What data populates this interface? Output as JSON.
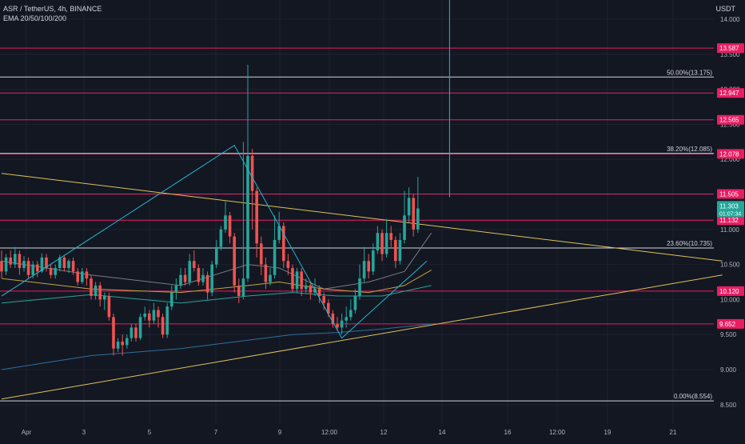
{
  "header": {
    "symbol_line": "ASR / TetherUS, 4h, BINANCE",
    "indicator_line": "EMA 20/50/100/200",
    "unit": "USDT"
  },
  "colors": {
    "background": "#131722",
    "grid": "#1e2230",
    "up": "#26a69a",
    "down": "#ef5350",
    "level_line": "#e91e63",
    "fib_line": "#d1d4dc",
    "trend_line": "#e0c25a",
    "zigzag": "#22b8cf",
    "ema20": "#787b86",
    "ema50": "#c2a441",
    "ema100": "#26a69a",
    "ema200": "#2d6f9e",
    "current_price_bg": "#26a69a",
    "level_tag_bg": "#e91e63"
  },
  "chart_data": {
    "type": "candlestick",
    "title": "ASR / TetherUS, 4h, BINANCE",
    "ylim": [
      8.4,
      14.2
    ],
    "y_scale": "linear",
    "y_ticks": [
      "14.000",
      "13.500",
      "13.000",
      "12.500",
      "12.000",
      "11.500",
      "11.000",
      "10.500",
      "10.000",
      "9.500",
      "9.000",
      "8.500"
    ],
    "x_ticks": [
      "Apr",
      "3",
      "5",
      "7",
      "9",
      "12:00",
      "12",
      "14",
      "16",
      "12:00",
      "19",
      "21"
    ],
    "grid": true,
    "horizontal_levels": [
      {
        "price": 13.587,
        "label": "13.587"
      },
      {
        "price": 12.947,
        "label": "12.947"
      },
      {
        "price": 12.565,
        "label": "12.565"
      },
      {
        "price": 12.078,
        "label": "12.078"
      },
      {
        "price": 11.505,
        "label": "11.505"
      },
      {
        "price": 11.132,
        "label": "11.132"
      },
      {
        "price": 10.12,
        "label": "10.120"
      },
      {
        "price": 9.652,
        "label": "9.652"
      }
    ],
    "fib_levels": [
      {
        "price": 13.175,
        "label": "50.00%(13.175)"
      },
      {
        "price": 12.085,
        "label": "38.20%(12.085)"
      },
      {
        "price": 10.735,
        "label": "23.60%(10.735)"
      },
      {
        "price": 8.554,
        "label": "0.00%(8.554)"
      }
    ],
    "current_price": {
      "price": 11.303,
      "label": "11.303",
      "countdown": "01:07:34"
    },
    "trend_lines": [
      {
        "name": "upper",
        "points": [
          [
            0,
            11.8
          ],
          [
            161,
            10.55
          ]
        ]
      },
      {
        "name": "lower",
        "points": [
          [
            0,
            8.58
          ],
          [
            161,
            10.35
          ]
        ]
      }
    ],
    "zigzag": [
      [
        0,
        10.05
      ],
      [
        52,
        12.2
      ],
      [
        76,
        9.45
      ],
      [
        95,
        10.55
      ]
    ],
    "vertical_spike": {
      "x": 99,
      "from": 11.46,
      "to": 14.3
    },
    "emas": [
      {
        "period": 20,
        "values": [
          [
            0,
            10.55
          ],
          [
            20,
            10.35
          ],
          [
            40,
            10.2
          ],
          [
            55,
            10.5
          ],
          [
            62,
            10.45
          ],
          [
            72,
            10.15
          ],
          [
            82,
            10.25
          ],
          [
            90,
            10.4
          ],
          [
            96,
            10.95
          ]
        ]
      },
      {
        "period": 50,
        "values": [
          [
            0,
            10.3
          ],
          [
            20,
            10.15
          ],
          [
            40,
            10.1
          ],
          [
            55,
            10.2
          ],
          [
            62,
            10.25
          ],
          [
            72,
            10.15
          ],
          [
            82,
            10.1
          ],
          [
            90,
            10.2
          ],
          [
            96,
            10.42
          ]
        ]
      },
      {
        "period": 100,
        "values": [
          [
            0,
            9.95
          ],
          [
            20,
            10.07
          ],
          [
            40,
            9.95
          ],
          [
            55,
            10.05
          ],
          [
            65,
            10.1
          ],
          [
            75,
            10.05
          ],
          [
            85,
            10.05
          ],
          [
            96,
            10.2
          ]
        ]
      },
      {
        "period": 200,
        "values": [
          [
            0,
            9.0
          ],
          [
            20,
            9.2
          ],
          [
            40,
            9.3
          ],
          [
            55,
            9.42
          ],
          [
            65,
            9.5
          ],
          [
            75,
            9.53
          ],
          [
            85,
            9.58
          ],
          [
            96,
            9.65
          ]
        ]
      }
    ],
    "candles": [
      [
        10.55,
        10.4,
        10.7,
        10.3
      ],
      [
        10.4,
        10.6,
        10.65,
        10.35
      ],
      [
        10.6,
        10.5,
        10.7,
        10.45
      ],
      [
        10.5,
        10.65,
        10.75,
        10.45
      ],
      [
        10.65,
        10.45,
        10.7,
        10.35
      ],
      [
        10.45,
        10.55,
        10.62,
        10.4
      ],
      [
        10.55,
        10.35,
        10.6,
        10.3
      ],
      [
        10.35,
        10.5,
        10.55,
        10.3
      ],
      [
        10.5,
        10.4,
        10.55,
        10.32
      ],
      [
        10.4,
        10.6,
        10.66,
        10.38
      ],
      [
        10.6,
        10.45,
        10.65,
        10.4
      ],
      [
        10.45,
        10.35,
        10.5,
        10.3
      ],
      [
        10.35,
        10.45,
        10.5,
        10.3
      ],
      [
        10.45,
        10.6,
        10.64,
        10.4
      ],
      [
        10.6,
        10.45,
        10.62,
        10.4
      ],
      [
        10.45,
        10.55,
        10.58,
        10.38
      ],
      [
        10.55,
        10.4,
        10.6,
        10.35
      ],
      [
        10.4,
        10.25,
        10.45,
        10.2
      ],
      [
        10.25,
        10.4,
        10.45,
        10.22
      ],
      [
        10.4,
        10.3,
        10.45,
        10.2
      ],
      [
        10.3,
        10.05,
        10.35,
        10.0
      ],
      [
        10.05,
        10.2,
        10.25,
        10.0
      ],
      [
        10.2,
        10.0,
        10.25,
        9.9
      ],
      [
        10.0,
        10.05,
        10.1,
        9.85
      ],
      [
        10.05,
        9.75,
        10.1,
        9.7
      ],
      [
        9.75,
        9.3,
        9.8,
        9.2
      ],
      [
        9.3,
        9.4,
        9.45,
        9.25
      ],
      [
        9.4,
        9.35,
        9.5,
        9.2
      ],
      [
        9.35,
        9.45,
        9.5,
        9.3
      ],
      [
        9.45,
        9.6,
        9.65,
        9.4
      ],
      [
        9.6,
        9.45,
        9.65,
        9.4
      ],
      [
        9.45,
        9.75,
        9.8,
        9.42
      ],
      [
        9.75,
        9.8,
        9.9,
        9.7
      ],
      [
        9.8,
        9.7,
        9.85,
        9.6
      ],
      [
        9.7,
        9.85,
        9.95,
        9.65
      ],
      [
        9.85,
        9.75,
        9.9,
        9.6
      ],
      [
        9.75,
        9.5,
        9.8,
        9.45
      ],
      [
        9.5,
        9.9,
        9.95,
        9.45
      ],
      [
        9.9,
        10.1,
        10.2,
        9.85
      ],
      [
        10.1,
        10.2,
        10.3,
        10.0
      ],
      [
        10.2,
        10.35,
        10.45,
        10.15
      ],
      [
        10.35,
        10.25,
        10.45,
        10.2
      ],
      [
        10.25,
        10.55,
        10.65,
        10.2
      ],
      [
        10.55,
        10.45,
        10.7,
        10.4
      ],
      [
        10.45,
        10.25,
        10.5,
        10.2
      ],
      [
        10.25,
        10.35,
        10.45,
        10.2
      ],
      [
        10.35,
        10.1,
        10.4,
        10.0
      ],
      [
        10.1,
        10.5,
        10.55,
        10.05
      ],
      [
        10.5,
        10.75,
        10.85,
        10.45
      ],
      [
        10.75,
        11.0,
        11.05,
        10.7
      ],
      [
        11.0,
        11.2,
        11.4,
        10.95
      ],
      [
        11.2,
        10.9,
        11.25,
        10.8
      ],
      [
        10.9,
        10.2,
        10.95,
        10.1
      ],
      [
        10.2,
        10.05,
        10.3,
        9.95
      ],
      [
        10.05,
        10.3,
        12.25,
        10.0
      ],
      [
        10.3,
        12.05,
        13.35,
        10.25
      ],
      [
        12.05,
        11.55,
        12.15,
        11.0
      ],
      [
        11.55,
        10.8,
        11.6,
        10.6
      ],
      [
        10.8,
        10.5,
        10.9,
        10.35
      ],
      [
        10.5,
        10.25,
        10.6,
        10.15
      ],
      [
        10.25,
        10.35,
        10.45,
        10.2
      ],
      [
        10.35,
        10.85,
        11.2,
        10.3
      ],
      [
        10.85,
        11.05,
        11.25,
        10.8
      ],
      [
        11.05,
        10.55,
        11.1,
        10.45
      ],
      [
        10.55,
        10.45,
        10.65,
        10.35
      ],
      [
        10.45,
        10.15,
        10.5,
        10.1
      ],
      [
        10.15,
        10.4,
        10.45,
        10.1
      ],
      [
        10.4,
        10.15,
        10.45,
        10.05
      ],
      [
        10.15,
        10.2,
        10.3,
        10.1
      ],
      [
        10.2,
        10.1,
        10.25,
        10.0
      ],
      [
        10.1,
        10.15,
        10.3,
        10.05
      ],
      [
        10.15,
        10.05,
        10.2,
        9.95
      ],
      [
        10.05,
        9.95,
        10.1,
        9.85
      ],
      [
        9.95,
        9.8,
        10.0,
        9.75
      ],
      [
        9.8,
        9.65,
        9.85,
        9.6
      ],
      [
        9.65,
        9.6,
        9.75,
        9.55
      ],
      [
        9.6,
        9.7,
        9.8,
        9.5
      ],
      [
        9.7,
        9.75,
        9.9,
        9.6
      ],
      [
        9.75,
        9.85,
        10.0,
        9.7
      ],
      [
        9.85,
        10.05,
        10.15,
        9.8
      ],
      [
        10.05,
        10.3,
        10.5,
        10.0
      ],
      [
        10.3,
        10.55,
        10.75,
        10.25
      ],
      [
        10.55,
        10.4,
        10.65,
        10.3
      ],
      [
        10.4,
        10.7,
        10.8,
        10.35
      ],
      [
        10.7,
        10.95,
        11.05,
        10.65
      ],
      [
        10.95,
        10.65,
        11.0,
        10.55
      ],
      [
        10.65,
        10.95,
        11.15,
        10.6
      ],
      [
        10.95,
        10.85,
        11.05,
        10.75
      ],
      [
        10.85,
        10.55,
        10.9,
        10.45
      ],
      [
        10.55,
        10.85,
        10.95,
        10.5
      ],
      [
        10.85,
        11.2,
        11.55,
        10.8
      ],
      [
        11.2,
        11.45,
        11.6,
        11.1
      ],
      [
        11.45,
        11.0,
        11.5,
        10.9
      ],
      [
        11.0,
        11.3,
        11.75,
        10.95
      ]
    ]
  }
}
